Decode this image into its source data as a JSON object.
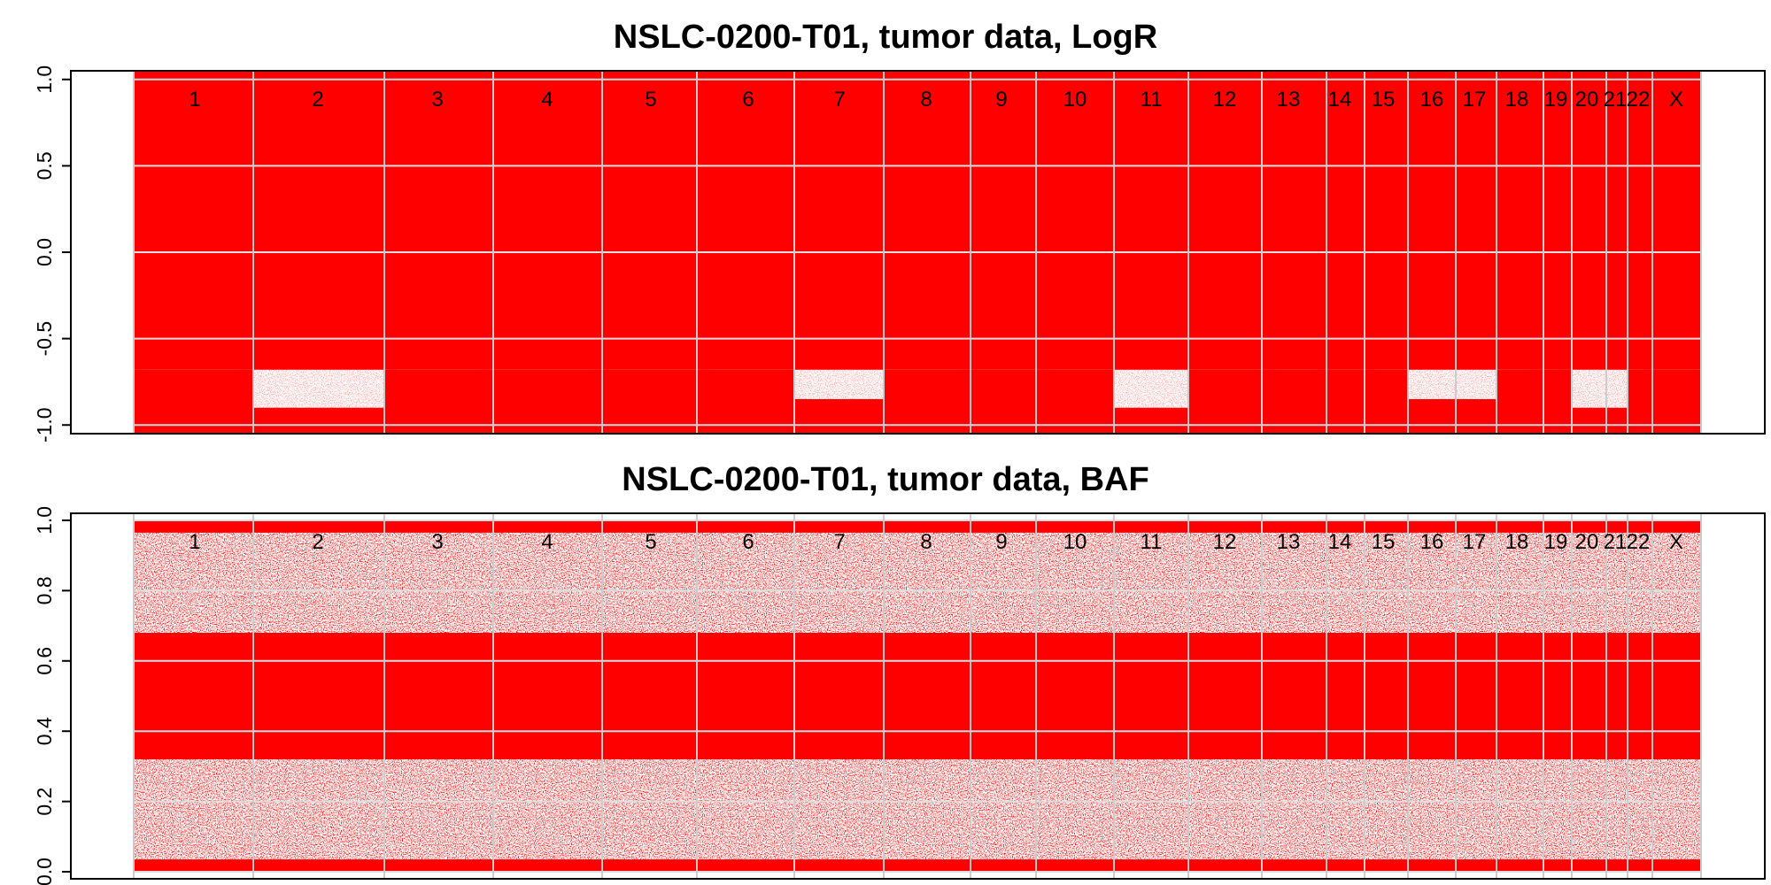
{
  "chart_data": [
    {
      "type": "scatter",
      "title": "NSLC-0200-T01, tumor data, LogR",
      "xlabel": "",
      "ylabel": "",
      "ylim": [
        -1.05,
        1.05
      ],
      "yticks": [
        "-1.0",
        "-0.5",
        "0.0",
        "0.5",
        "1.0"
      ],
      "ytick_values": [
        -1.0,
        -0.5,
        0.0,
        0.5,
        1.0
      ],
      "point_color": "#ff0000",
      "chromosomes": [
        "1",
        "2",
        "3",
        "4",
        "5",
        "6",
        "7",
        "8",
        "9",
        "10",
        "11",
        "12",
        "13",
        "14",
        "15",
        "16",
        "17",
        "18",
        "19",
        "20",
        "21",
        "22",
        "X"
      ],
      "dense_band": [
        -0.68,
        1.05
      ],
      "lower_segments": [
        {
          "chr": "1",
          "logr_low": [
            -1.05,
            -0.68
          ]
        },
        {
          "chr": "2",
          "logr_low": [
            -1.05,
            -0.9
          ]
        },
        {
          "chr": "3",
          "logr_low": [
            -1.05,
            -0.68
          ]
        },
        {
          "chr": "4",
          "logr_low": [
            -1.05,
            -0.68
          ]
        },
        {
          "chr": "5",
          "logr_low": [
            -1.05,
            -0.68
          ]
        },
        {
          "chr": "6",
          "logr_low": [
            -1.05,
            -0.68
          ]
        },
        {
          "chr": "7",
          "logr_low": [
            -1.05,
            -0.85
          ]
        },
        {
          "chr": "8",
          "logr_low": [
            -1.05,
            -0.68
          ]
        },
        {
          "chr": "9",
          "logr_low": [
            -1.05,
            -0.68
          ]
        },
        {
          "chr": "10",
          "logr_low": [
            -1.05,
            -0.68
          ]
        },
        {
          "chr": "11",
          "logr_low": [
            -1.05,
            -0.9
          ]
        },
        {
          "chr": "12",
          "logr_low": [
            -1.05,
            -0.68
          ]
        },
        {
          "chr": "13",
          "logr_low": [
            -1.05,
            -0.68
          ]
        },
        {
          "chr": "14",
          "logr_low": [
            -1.05,
            -0.68
          ]
        },
        {
          "chr": "15",
          "logr_low": [
            -1.05,
            -0.68
          ]
        },
        {
          "chr": "16",
          "logr_low": [
            -1.05,
            -0.85
          ]
        },
        {
          "chr": "17",
          "logr_low": [
            -1.05,
            -0.85
          ]
        },
        {
          "chr": "18",
          "logr_low": [
            -1.05,
            -0.68
          ]
        },
        {
          "chr": "19",
          "logr_low": [
            -1.05,
            -0.68
          ]
        },
        {
          "chr": "20",
          "logr_low": [
            -1.05,
            -0.9
          ]
        },
        {
          "chr": "21",
          "logr_low": [
            -1.05,
            -0.9
          ]
        },
        {
          "chr": "22",
          "logr_low": [
            -1.05,
            -0.68
          ]
        },
        {
          "chr": "X",
          "logr_low": [
            -1.05,
            -0.68
          ]
        }
      ],
      "grid": true
    },
    {
      "type": "scatter",
      "title": "NSLC-0200-T01, tumor data, BAF",
      "xlabel": "",
      "ylabel": "",
      "ylim": [
        -0.02,
        1.02
      ],
      "yticks": [
        "0.0",
        "0.2",
        "0.4",
        "0.6",
        "0.8",
        "1.0"
      ],
      "ytick_values": [
        0.0,
        0.2,
        0.4,
        0.6,
        0.8,
        1.0
      ],
      "point_color": "#ff0000",
      "chromosomes": [
        "1",
        "2",
        "3",
        "4",
        "5",
        "6",
        "7",
        "8",
        "9",
        "10",
        "11",
        "12",
        "13",
        "14",
        "15",
        "16",
        "17",
        "18",
        "19",
        "20",
        "21",
        "22",
        "X"
      ],
      "homozygous_bands": [
        [
          0.0,
          0.02
        ],
        [
          0.98,
          1.0
        ]
      ],
      "heterozygous_band": [
        0.32,
        0.68
      ],
      "grid": true
    }
  ]
}
